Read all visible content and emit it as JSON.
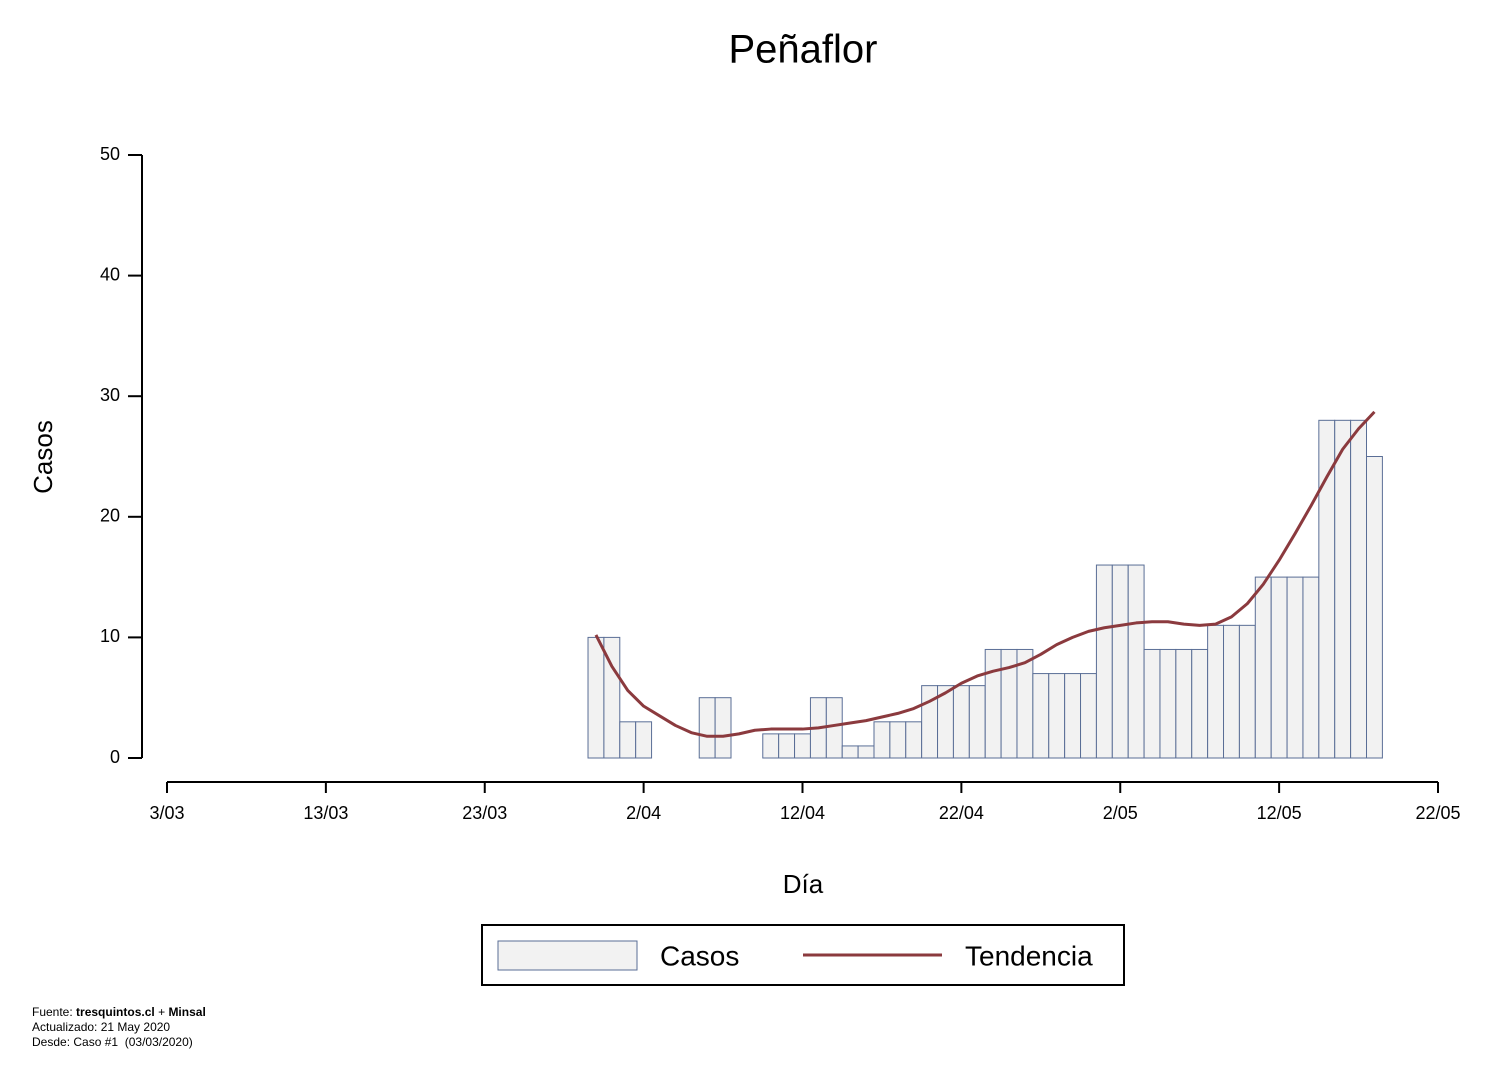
{
  "chart_data": {
    "type": "bar",
    "title": "Peñaflor",
    "x_label": "Día",
    "y_label": "Casos",
    "x": [
      "30/03",
      "31/03",
      "1/04",
      "2/04",
      "3/04",
      "4/04",
      "5/04",
      "6/04",
      "7/04",
      "8/04",
      "9/04",
      "10/04",
      "11/04",
      "12/04",
      "13/04",
      "14/04",
      "15/04",
      "16/04",
      "17/04",
      "18/04",
      "19/04",
      "20/04",
      "21/04",
      "22/04",
      "23/04",
      "24/04",
      "25/04",
      "26/04",
      "27/04",
      "28/04",
      "29/04",
      "30/04",
      "1/05",
      "2/05",
      "3/05",
      "4/05",
      "5/05",
      "6/05",
      "7/05",
      "8/05",
      "9/05",
      "10/05",
      "11/05",
      "12/05",
      "13/05",
      "14/05",
      "15/05",
      "16/05",
      "17/05",
      "18/05"
    ],
    "series": [
      {
        "name": "Casos",
        "type": "bar",
        "color": "#f2f2f2",
        "stroke": "#5a6e96",
        "values": [
          10,
          10,
          3,
          3,
          0,
          0,
          0,
          5,
          5,
          0,
          0,
          2,
          2,
          2,
          5,
          5,
          1,
          1,
          3,
          3,
          3,
          6,
          6,
          6,
          6,
          9,
          9,
          9,
          7,
          7,
          7,
          7,
          16,
          16,
          16,
          9,
          9,
          9,
          9,
          11,
          11,
          11,
          15,
          15,
          15,
          15,
          28,
          28,
          28,
          25
        ]
      },
      {
        "name": "Tendencia",
        "type": "line",
        "color": "#8b3a3e",
        "values": [
          10.2,
          7.6,
          5.6,
          4.3,
          3.5,
          2.7,
          2.1,
          1.8,
          1.8,
          2.0,
          2.3,
          2.4,
          2.4,
          2.4,
          2.5,
          2.7,
          2.9,
          3.1,
          3.4,
          3.7,
          4.1,
          4.7,
          5.4,
          6.2,
          6.8,
          7.2,
          7.5,
          7.9,
          8.6,
          9.4,
          10.0,
          10.5,
          10.8,
          11.0,
          11.2,
          11.3,
          11.3,
          11.1,
          11.0,
          11.1,
          11.7,
          12.8,
          14.4,
          16.4,
          18.6,
          20.9,
          23.3,
          25.6,
          27.3,
          28.7
        ]
      }
    ],
    "xlim": [
      "3/03",
      "22/05"
    ],
    "xticks": [
      "3/03",
      "13/03",
      "23/03",
      "2/04",
      "12/04",
      "22/04",
      "2/05",
      "12/05",
      "22/05"
    ],
    "ylim": [
      0,
      50
    ],
    "yticks": [
      0,
      10,
      20,
      30,
      40,
      50
    ],
    "legend": "bottom",
    "footer": {
      "source_label": "Fuente:",
      "source_site": "tresquintos.cl",
      "source_plus": "+",
      "source_org": "Minsal",
      "updated": "Actualizado: 21 May 2020",
      "since": "Desde: Caso #1  (03/03/2020)"
    }
  }
}
